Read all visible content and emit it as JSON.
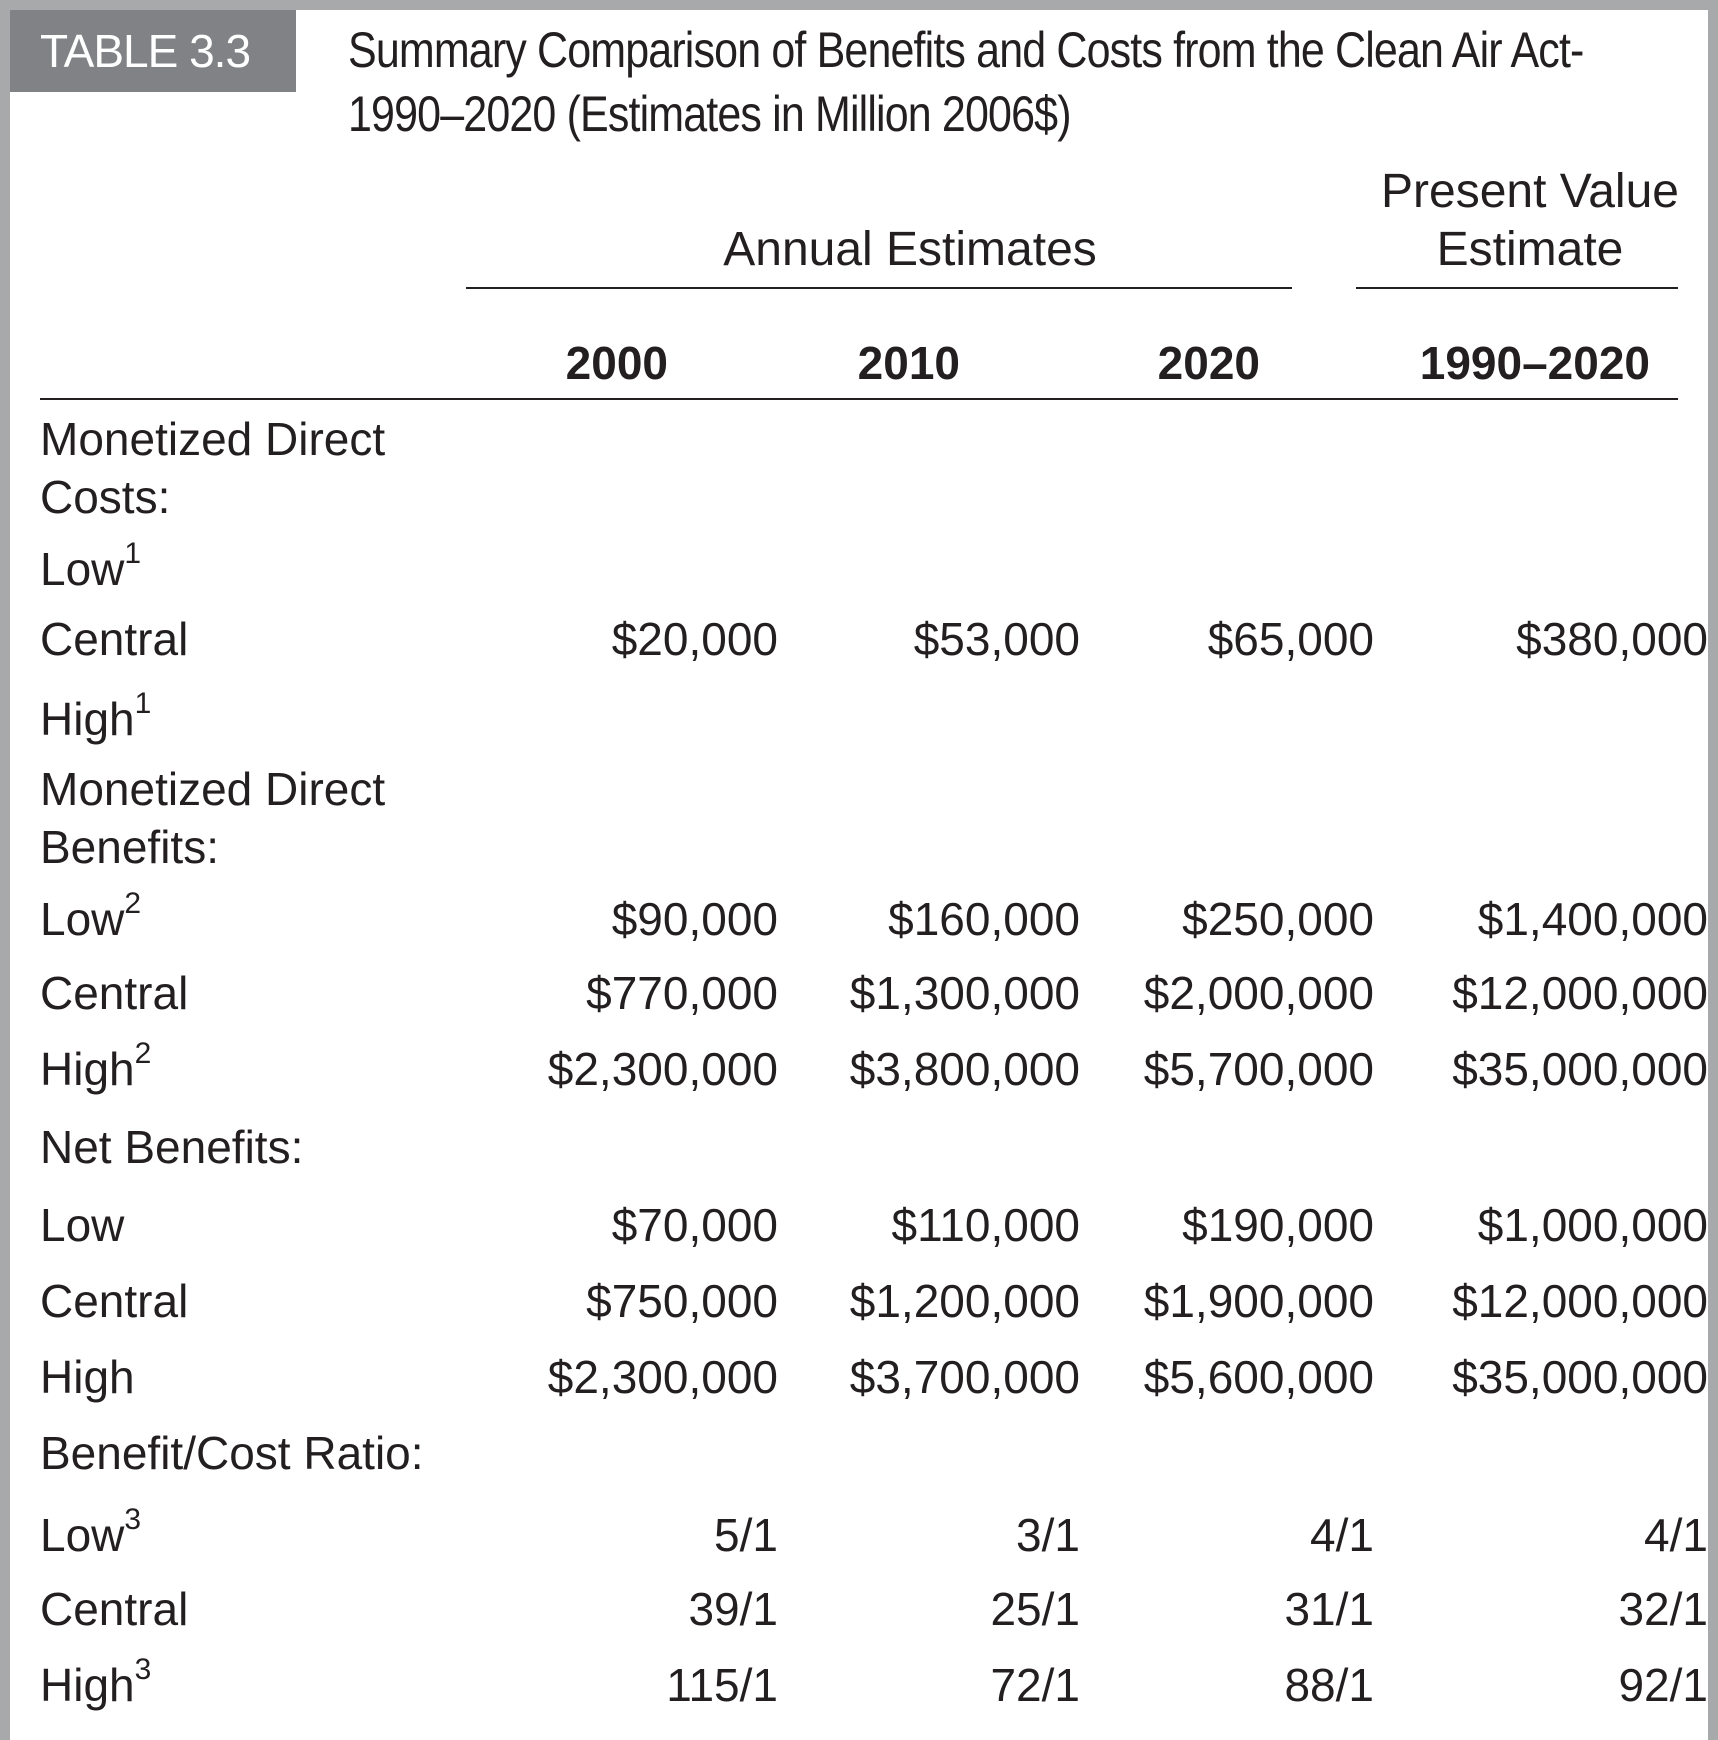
{
  "table_label": "TABLE 3.3",
  "title": "Summary Comparison of Benefits and Costs from the Clean Air Act-1990–2020 (Estimates in Million 2006$)",
  "group_headers": {
    "annual": "Annual Estimates",
    "present_value_line1": "Present Value",
    "present_value_line2": "Estimate"
  },
  "columns": [
    "2000",
    "2010",
    "2020",
    "1990–2020"
  ],
  "sections": {
    "costs_line1": "Monetized Direct",
    "costs_line2": "Costs:",
    "benefits_line1": "Monetized Direct",
    "benefits_line2": "Benefits:",
    "net": "Net Benefits:",
    "ratio": "Benefit/Cost Ratio:"
  },
  "rows": {
    "costs_low": {
      "label": "Low",
      "sup": "1",
      "values": [
        "",
        "",
        "",
        ""
      ]
    },
    "costs_central": {
      "label": "Central",
      "sup": "",
      "values": [
        "$20,000",
        "$53,000",
        "$65,000",
        "$380,000"
      ]
    },
    "costs_high": {
      "label": "High",
      "sup": "1",
      "values": [
        "",
        "",
        "",
        ""
      ]
    },
    "benefits_low": {
      "label": "Low",
      "sup": "2",
      "values": [
        "$90,000",
        "$160,000",
        "$250,000",
        "$1,400,000"
      ]
    },
    "benefits_central": {
      "label": "Central",
      "sup": "",
      "values": [
        "$770,000",
        "$1,300,000",
        "$2,000,000",
        "$12,000,000"
      ]
    },
    "benefits_high": {
      "label": "High",
      "sup": "2",
      "values": [
        "$2,300,000",
        "$3,800,000",
        "$5,700,000",
        "$35,000,000"
      ]
    },
    "net_low": {
      "label": "Low",
      "sup": "",
      "values": [
        "$70,000",
        "$110,000",
        "$190,000",
        "$1,000,000"
      ]
    },
    "net_central": {
      "label": "Central",
      "sup": "",
      "values": [
        "$750,000",
        "$1,200,000",
        "$1,900,000",
        "$12,000,000"
      ]
    },
    "net_high": {
      "label": "High",
      "sup": "",
      "values": [
        "$2,300,000",
        "$3,700,000",
        "$5,600,000",
        "$35,000,000"
      ]
    },
    "ratio_low": {
      "label": "Low",
      "sup": "3",
      "values": [
        "5/1",
        "3/1",
        "4/1",
        "4/1"
      ]
    },
    "ratio_central": {
      "label": "Central",
      "sup": "",
      "values": [
        "39/1",
        "25/1",
        "31/1",
        "32/1"
      ]
    },
    "ratio_high": {
      "label": "High",
      "sup": "3",
      "values": [
        "115/1",
        "72/1",
        "88/1",
        "92/1"
      ]
    }
  }
}
